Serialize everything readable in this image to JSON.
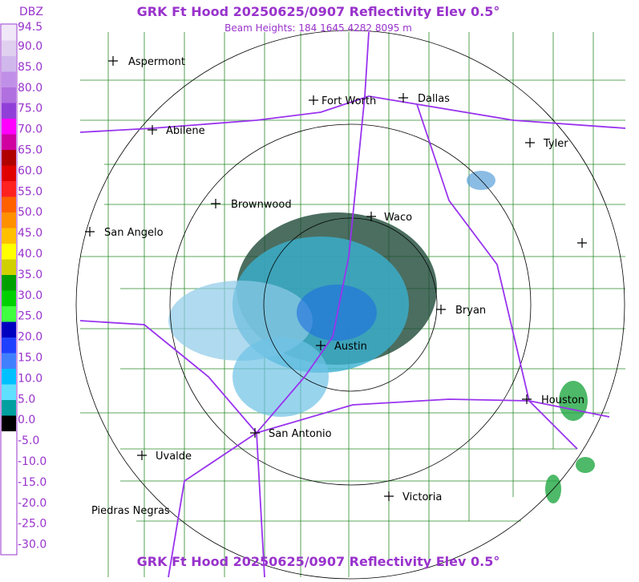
{
  "header": {
    "title": "GRK Ft Hood 20250625/0907 Reflectivity Elev 0.5°",
    "subtitle": "Beam Heights: 184 1645 4282 8095 m"
  },
  "footer": {
    "title": "GRK Ft Hood 20250625/0907 Reflectivity Elev 0.5°"
  },
  "legend": {
    "unit": "DBZ",
    "labels": [
      "94.5",
      "90.0",
      "85.0",
      "80.0",
      "75.0",
      "70.0",
      "65.0",
      "60.0",
      "55.0",
      "50.0",
      "45.0",
      "40.0",
      "35.0",
      "30.0",
      "25.0",
      "20.0",
      "15.0",
      "10.0",
      "5.0",
      "0.0",
      "-5.0",
      "-10.0",
      "-15.0",
      "-20.0",
      "-25.0",
      "-30.0"
    ]
  },
  "cities": [
    "Aspermont",
    "Fort Worth",
    "Dallas",
    "Abilene",
    "Tyler",
    "Brownwood",
    "Waco",
    "San Angelo",
    "Bryan",
    "Austin",
    "Houston",
    "San Antonio",
    "Uvalde",
    "Victoria",
    "Piedras Negras"
  ]
}
